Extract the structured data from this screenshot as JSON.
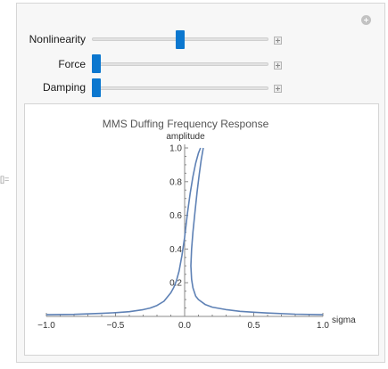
{
  "cell": {
    "label": "[]="
  },
  "controls": [
    {
      "label": "Nonlinearity",
      "fraction": 0.5
    },
    {
      "label": "Force",
      "fraction": 0.0
    },
    {
      "label": "Damping",
      "fraction": 0.0
    }
  ],
  "chart_data": {
    "type": "line",
    "title": "MMS Duffing Frequency Response",
    "xlabel": "sigma",
    "ylabel": "amplitude",
    "xlim": [
      -1.0,
      1.0
    ],
    "ylim": [
      0.0,
      1.0
    ],
    "x_ticks": [
      "-1.0",
      "-0.5",
      "0.0",
      "0.5",
      "1.0"
    ],
    "y_ticks": [
      "0.2",
      "0.4",
      "0.6",
      "0.8",
      "1.0"
    ],
    "grid": false,
    "series": [
      {
        "color": "#5e81b5",
        "x": [
          -1.0,
          -0.8,
          -0.6,
          -0.5,
          -0.4,
          -0.3,
          -0.25,
          -0.2,
          -0.15,
          -0.1,
          -0.08,
          -0.06,
          -0.04,
          -0.02,
          0.0,
          0.02,
          0.04,
          0.06,
          0.08,
          0.1,
          0.115
        ],
        "y": [
          0.01,
          0.012,
          0.018,
          0.022,
          0.028,
          0.04,
          0.05,
          0.065,
          0.09,
          0.14,
          0.17,
          0.21,
          0.27,
          0.36,
          0.47,
          0.61,
          0.73,
          0.83,
          0.91,
          0.97,
          1.0
        ]
      },
      {
        "color": "#5e81b5",
        "x": [
          0.135,
          0.12,
          0.105,
          0.09,
          0.075,
          0.06,
          0.05,
          0.045,
          0.05,
          0.06,
          0.08,
          0.1,
          0.15,
          0.2,
          0.3,
          0.4,
          0.5,
          0.6,
          0.8,
          1.0
        ],
        "y": [
          1.0,
          0.93,
          0.84,
          0.74,
          0.62,
          0.5,
          0.4,
          0.3,
          0.22,
          0.17,
          0.12,
          0.1,
          0.07,
          0.055,
          0.04,
          0.03,
          0.025,
          0.02,
          0.013,
          0.01
        ]
      }
    ]
  }
}
